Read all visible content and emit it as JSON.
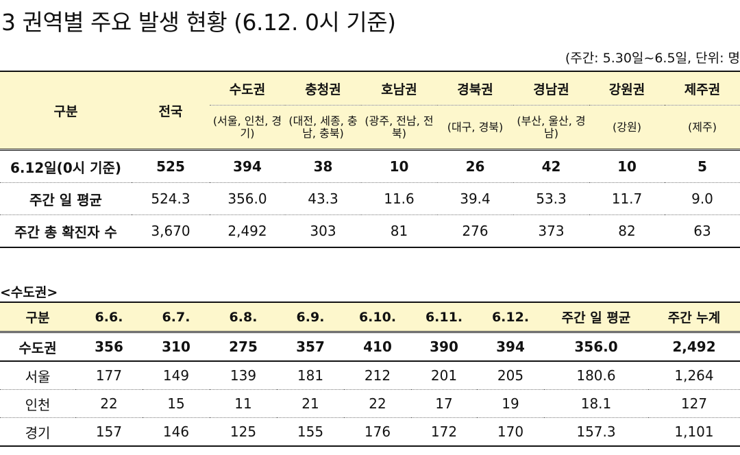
{
  "title": "3  권역별 주요 발생 현황 (6.12. 0시 기준)",
  "unit_note": "(주간: 5.30일~6.5일, 단위: 명",
  "table1": {
    "header_gubun": "구분",
    "header_national": "전국",
    "regions": [
      {
        "name": "수도권",
        "sub": "(서울, 인천, 경기)"
      },
      {
        "name": "충청권",
        "sub": "(대전, 세종, 충남, 충북)"
      },
      {
        "name": "호남권",
        "sub": "(광주, 전남, 전북)"
      },
      {
        "name": "경북권",
        "sub": "(대구, 경북)"
      },
      {
        "name": "경남권",
        "sub": "(부산, 울산, 경남)"
      },
      {
        "name": "강원권",
        "sub": "(강원)"
      },
      {
        "name": "제주권",
        "sub": "(제주)"
      }
    ],
    "rows": [
      {
        "label": "6.12일(0시 기준)",
        "values": [
          "525",
          "394",
          "38",
          "10",
          "26",
          "42",
          "10",
          "5"
        ]
      },
      {
        "label": "주간 일 평균",
        "values": [
          "524.3",
          "356.0",
          "43.3",
          "11.6",
          "39.4",
          "53.3",
          "11.7",
          "9.0"
        ]
      },
      {
        "label": "주간 총 확진자 수",
        "values": [
          "3,670",
          "2,492",
          "303",
          "81",
          "276",
          "373",
          "82",
          "63"
        ]
      }
    ]
  },
  "subtitle": "<수도권>",
  "table2": {
    "headers": [
      "구분",
      "6.6.",
      "6.7.",
      "6.8.",
      "6.9.",
      "6.10.",
      "6.11.",
      "6.12.",
      "주간 일 평균",
      "주간 누계"
    ],
    "rows": [
      {
        "label": "수도권",
        "values": [
          "356",
          "310",
          "275",
          "357",
          "410",
          "390",
          "394",
          "356.0",
          "2,492"
        ]
      },
      {
        "label": "서울",
        "values": [
          "177",
          "149",
          "139",
          "181",
          "212",
          "201",
          "205",
          "180.6",
          "1,264"
        ]
      },
      {
        "label": "인천",
        "values": [
          "22",
          "15",
          "11",
          "21",
          "22",
          "17",
          "19",
          "18.1",
          "127"
        ]
      },
      {
        "label": "경기",
        "values": [
          "157",
          "146",
          "125",
          "155",
          "176",
          "172",
          "170",
          "157.3",
          "1,101"
        ]
      }
    ]
  }
}
